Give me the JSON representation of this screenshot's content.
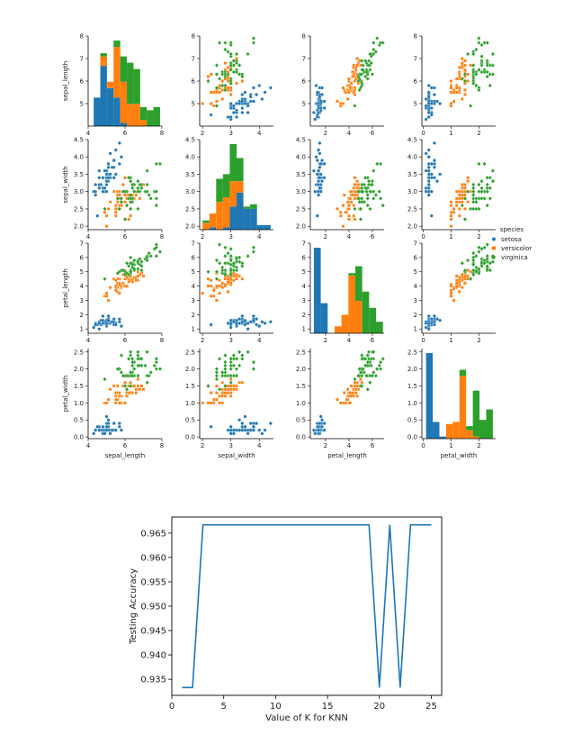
{
  "chart_data": [
    {
      "type": "scatter",
      "subtype": "pairplot",
      "variables": [
        "sepal_length",
        "sepal_width",
        "petal_length",
        "petal_width"
      ],
      "axis_ranges": {
        "sepal_length": [
          4,
          8
        ],
        "sepal_width": [
          1.9,
          4.5
        ],
        "petal_length": [
          0.7,
          7
        ],
        "petal_width": [
          -0.05,
          2.6
        ]
      },
      "ticks": {
        "sepal_length": [
          "4",
          "6",
          "8"
        ],
        "sepal_width": [
          "2",
          "3",
          "4"
        ],
        "petal_length": [
          "2",
          "4",
          "6"
        ],
        "petal_width": [
          "0",
          "1",
          "2"
        ]
      },
      "y_ticks": {
        "sepal_length": [
          "5",
          "6",
          "7",
          "8"
        ],
        "sepal_width": [
          "2.0",
          "2.5",
          "3.0",
          "3.5",
          "4.0",
          "4.5"
        ],
        "petal_length": [
          "1",
          "2",
          "3",
          "4",
          "5",
          "6",
          "7"
        ],
        "petal_width": [
          "0.0",
          "0.5",
          "1.0",
          "1.5",
          "2.0",
          "2.5"
        ]
      },
      "legend": {
        "title": "species",
        "position": "right",
        "entries": [
          {
            "name": "setosa",
            "color": "#1f77b4",
            "marker": "circle"
          },
          {
            "name": "versicolor",
            "color": "#ff7f0e",
            "marker": "square"
          },
          {
            "name": "virginica",
            "color": "#2ca02c",
            "marker": "diamond"
          }
        ]
      },
      "series": [
        {
          "name": "setosa",
          "points": [
            [
              5.1,
              3.5,
              1.4,
              0.2
            ],
            [
              4.9,
              3.0,
              1.4,
              0.2
            ],
            [
              4.7,
              3.2,
              1.3,
              0.2
            ],
            [
              4.6,
              3.1,
              1.5,
              0.2
            ],
            [
              5.0,
              3.6,
              1.4,
              0.2
            ],
            [
              5.4,
              3.9,
              1.7,
              0.4
            ],
            [
              4.6,
              3.4,
              1.4,
              0.3
            ],
            [
              5.0,
              3.4,
              1.5,
              0.2
            ],
            [
              4.4,
              2.9,
              1.4,
              0.2
            ],
            [
              4.9,
              3.1,
              1.5,
              0.1
            ],
            [
              5.4,
              3.7,
              1.5,
              0.2
            ],
            [
              4.8,
              3.4,
              1.6,
              0.2
            ],
            [
              4.8,
              3.0,
              1.4,
              0.1
            ],
            [
              4.3,
              3.0,
              1.1,
              0.1
            ],
            [
              5.8,
              4.0,
              1.2,
              0.2
            ],
            [
              5.7,
              4.4,
              1.5,
              0.4
            ],
            [
              5.4,
              3.9,
              1.3,
              0.4
            ],
            [
              5.1,
              3.5,
              1.4,
              0.3
            ],
            [
              5.7,
              3.8,
              1.7,
              0.3
            ],
            [
              5.1,
              3.8,
              1.5,
              0.3
            ],
            [
              5.4,
              3.4,
              1.7,
              0.2
            ],
            [
              5.1,
              3.7,
              1.5,
              0.4
            ],
            [
              4.6,
              3.6,
              1.0,
              0.2
            ],
            [
              5.1,
              3.3,
              1.7,
              0.5
            ],
            [
              4.8,
              3.4,
              1.9,
              0.2
            ],
            [
              5.0,
              3.0,
              1.6,
              0.2
            ],
            [
              5.0,
              3.4,
              1.6,
              0.4
            ],
            [
              5.2,
              3.5,
              1.5,
              0.2
            ],
            [
              5.2,
              3.4,
              1.4,
              0.2
            ],
            [
              4.7,
              3.2,
              1.6,
              0.2
            ],
            [
              4.8,
              3.1,
              1.6,
              0.2
            ],
            [
              5.4,
              3.4,
              1.5,
              0.4
            ],
            [
              5.2,
              4.1,
              1.5,
              0.1
            ],
            [
              5.5,
              4.2,
              1.4,
              0.2
            ],
            [
              4.9,
              3.1,
              1.5,
              0.2
            ],
            [
              5.0,
              3.2,
              1.2,
              0.2
            ],
            [
              5.5,
              3.5,
              1.3,
              0.2
            ],
            [
              4.9,
              3.6,
              1.4,
              0.1
            ],
            [
              4.4,
              3.0,
              1.3,
              0.2
            ],
            [
              5.1,
              3.4,
              1.5,
              0.2
            ],
            [
              5.0,
              3.5,
              1.3,
              0.3
            ],
            [
              4.5,
              2.3,
              1.3,
              0.3
            ],
            [
              4.4,
              3.2,
              1.3,
              0.2
            ],
            [
              5.0,
              3.5,
              1.6,
              0.6
            ],
            [
              5.1,
              3.8,
              1.9,
              0.4
            ],
            [
              4.8,
              3.0,
              1.4,
              0.3
            ],
            [
              5.1,
              3.8,
              1.6,
              0.2
            ],
            [
              4.6,
              3.2,
              1.4,
              0.2
            ],
            [
              5.3,
              3.7,
              1.5,
              0.2
            ],
            [
              5.0,
              3.3,
              1.4,
              0.2
            ]
          ]
        },
        {
          "name": "versicolor",
          "points": [
            [
              7.0,
              3.2,
              4.7,
              1.4
            ],
            [
              6.4,
              3.2,
              4.5,
              1.5
            ],
            [
              6.9,
              3.1,
              4.9,
              1.5
            ],
            [
              5.5,
              2.3,
              4.0,
              1.3
            ],
            [
              6.5,
              2.8,
              4.6,
              1.5
            ],
            [
              5.7,
              2.8,
              4.5,
              1.3
            ],
            [
              6.3,
              3.3,
              4.7,
              1.6
            ],
            [
              4.9,
              2.4,
              3.3,
              1.0
            ],
            [
              6.6,
              2.9,
              4.6,
              1.3
            ],
            [
              5.2,
              2.7,
              3.9,
              1.4
            ],
            [
              5.0,
              2.0,
              3.5,
              1.0
            ],
            [
              5.9,
              3.0,
              4.2,
              1.5
            ],
            [
              6.0,
              2.2,
              4.0,
              1.0
            ],
            [
              6.1,
              2.9,
              4.7,
              1.4
            ],
            [
              5.6,
              2.9,
              3.6,
              1.3
            ],
            [
              6.7,
              3.1,
              4.4,
              1.4
            ],
            [
              5.6,
              3.0,
              4.5,
              1.5
            ],
            [
              5.8,
              2.7,
              4.1,
              1.0
            ],
            [
              6.2,
              2.2,
              4.5,
              1.5
            ],
            [
              5.6,
              2.5,
              3.9,
              1.1
            ],
            [
              5.9,
              3.2,
              4.8,
              1.8
            ],
            [
              6.1,
              2.8,
              4.0,
              1.3
            ],
            [
              6.3,
              2.5,
              4.9,
              1.5
            ],
            [
              6.1,
              2.8,
              4.7,
              1.2
            ],
            [
              6.4,
              2.9,
              4.3,
              1.3
            ],
            [
              6.6,
              3.0,
              4.4,
              1.4
            ],
            [
              6.8,
              2.8,
              4.8,
              1.4
            ],
            [
              6.7,
              3.0,
              5.0,
              1.7
            ],
            [
              6.0,
              2.9,
              4.5,
              1.5
            ],
            [
              5.7,
              2.6,
              3.5,
              1.0
            ],
            [
              5.5,
              2.4,
              3.8,
              1.1
            ],
            [
              5.5,
              2.4,
              3.7,
              1.0
            ],
            [
              5.8,
              2.7,
              3.9,
              1.2
            ],
            [
              6.0,
              2.7,
              5.1,
              1.6
            ],
            [
              5.4,
              3.0,
              4.5,
              1.5
            ],
            [
              6.0,
              3.4,
              4.5,
              1.6
            ],
            [
              6.7,
              3.1,
              4.7,
              1.5
            ],
            [
              6.3,
              2.3,
              4.4,
              1.3
            ],
            [
              5.6,
              3.0,
              4.1,
              1.3
            ],
            [
              5.5,
              2.5,
              4.0,
              1.3
            ],
            [
              5.5,
              2.6,
              4.4,
              1.2
            ],
            [
              6.1,
              3.0,
              4.6,
              1.4
            ],
            [
              5.8,
              2.6,
              4.0,
              1.2
            ],
            [
              5.0,
              2.3,
              3.3,
              1.0
            ],
            [
              5.6,
              2.7,
              4.2,
              1.3
            ],
            [
              5.7,
              3.0,
              4.2,
              1.2
            ],
            [
              5.7,
              2.9,
              4.2,
              1.3
            ],
            [
              6.2,
              2.9,
              4.3,
              1.3
            ],
            [
              5.1,
              2.5,
              3.0,
              1.1
            ],
            [
              5.7,
              2.8,
              4.1,
              1.3
            ]
          ]
        },
        {
          "name": "virginica",
          "points": [
            [
              6.3,
              3.3,
              6.0,
              2.5
            ],
            [
              5.8,
              2.7,
              5.1,
              1.9
            ],
            [
              7.1,
              3.0,
              5.9,
              2.1
            ],
            [
              6.3,
              2.9,
              5.6,
              1.8
            ],
            [
              6.5,
              3.0,
              5.8,
              2.2
            ],
            [
              7.6,
              3.0,
              6.6,
              2.1
            ],
            [
              4.9,
              2.5,
              4.5,
              1.7
            ],
            [
              7.3,
              2.9,
              6.3,
              1.8
            ],
            [
              6.7,
              2.5,
              5.8,
              1.8
            ],
            [
              7.2,
              3.6,
              6.1,
              2.5
            ],
            [
              6.5,
              3.2,
              5.1,
              2.0
            ],
            [
              6.4,
              2.7,
              5.3,
              1.9
            ],
            [
              6.8,
              3.0,
              5.5,
              2.1
            ],
            [
              5.7,
              2.5,
              5.0,
              2.0
            ],
            [
              5.8,
              2.8,
              5.1,
              2.4
            ],
            [
              6.4,
              3.2,
              5.3,
              2.3
            ],
            [
              6.5,
              3.0,
              5.5,
              1.8
            ],
            [
              7.7,
              3.8,
              6.7,
              2.2
            ],
            [
              7.7,
              2.6,
              6.9,
              2.3
            ],
            [
              6.0,
              2.2,
              5.0,
              1.5
            ],
            [
              6.9,
              3.2,
              5.7,
              2.3
            ],
            [
              5.6,
              2.8,
              4.9,
              2.0
            ],
            [
              7.7,
              2.8,
              6.7,
              2.0
            ],
            [
              6.3,
              2.7,
              4.9,
              1.8
            ],
            [
              6.7,
              3.3,
              5.7,
              2.1
            ],
            [
              7.2,
              3.2,
              6.0,
              1.8
            ],
            [
              6.2,
              2.8,
              4.8,
              1.8
            ],
            [
              6.1,
              3.0,
              4.9,
              1.8
            ],
            [
              6.4,
              2.8,
              5.6,
              2.1
            ],
            [
              7.2,
              3.0,
              5.8,
              1.6
            ],
            [
              7.4,
              2.8,
              6.1,
              1.9
            ],
            [
              7.9,
              3.8,
              6.4,
              2.0
            ],
            [
              6.4,
              2.8,
              5.6,
              2.2
            ],
            [
              6.3,
              2.8,
              5.1,
              1.5
            ],
            [
              6.1,
              2.6,
              5.6,
              1.4
            ],
            [
              7.7,
              3.0,
              6.1,
              2.3
            ],
            [
              6.3,
              3.4,
              5.6,
              2.4
            ],
            [
              6.4,
              3.1,
              5.5,
              1.8
            ],
            [
              6.0,
              3.0,
              4.8,
              1.8
            ],
            [
              6.9,
              3.1,
              5.4,
              2.1
            ],
            [
              6.7,
              3.1,
              5.6,
              2.4
            ],
            [
              6.9,
              3.1,
              5.1,
              2.3
            ],
            [
              5.8,
              2.7,
              5.1,
              1.9
            ],
            [
              6.8,
              3.2,
              5.9,
              2.3
            ],
            [
              6.7,
              3.3,
              5.7,
              2.5
            ],
            [
              6.7,
              3.0,
              5.2,
              2.3
            ],
            [
              6.3,
              2.5,
              5.0,
              1.9
            ],
            [
              6.5,
              3.0,
              5.2,
              2.0
            ],
            [
              6.2,
              3.4,
              5.4,
              2.3
            ],
            [
              5.9,
              3.0,
              5.1,
              1.8
            ]
          ]
        }
      ],
      "diagonal_hist_bins": 10
    },
    {
      "type": "line",
      "xlabel": "Value of K for KNN",
      "ylabel": "Testing Accuracy",
      "x": [
        1,
        2,
        3,
        4,
        5,
        6,
        7,
        8,
        9,
        10,
        11,
        12,
        13,
        14,
        15,
        16,
        17,
        18,
        19,
        20,
        21,
        22,
        23,
        24,
        25
      ],
      "values": [
        0.9333,
        0.9333,
        0.9667,
        0.9667,
        0.9667,
        0.9667,
        0.9667,
        0.9667,
        0.9667,
        0.9667,
        0.9667,
        0.9667,
        0.9667,
        0.9667,
        0.9667,
        0.9667,
        0.9667,
        0.9667,
        0.9667,
        0.9333,
        0.9667,
        0.9333,
        0.9667,
        0.9667,
        0.9667
      ],
      "xlim": [
        0,
        26
      ],
      "ylim": [
        0.9317,
        0.9683
      ],
      "xticks": [
        "0",
        "5",
        "10",
        "15",
        "20",
        "25"
      ],
      "yticks": [
        "0.935",
        "0.940",
        "0.945",
        "0.950",
        "0.955",
        "0.960",
        "0.965"
      ],
      "color": "#1f77b4",
      "grid": false
    }
  ]
}
